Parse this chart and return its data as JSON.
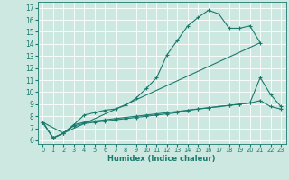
{
  "xlabel": "Humidex (Indice chaleur)",
  "bg_color": "#cce8e0",
  "grid_color": "#ffffff",
  "line_color": "#1a7a6e",
  "xlim": [
    -0.5,
    23.5
  ],
  "ylim": [
    5.7,
    17.5
  ],
  "xticks": [
    0,
    1,
    2,
    3,
    4,
    5,
    6,
    7,
    8,
    9,
    10,
    11,
    12,
    13,
    14,
    15,
    16,
    17,
    18,
    19,
    20,
    21,
    22,
    23
  ],
  "yticks": [
    6,
    7,
    8,
    9,
    10,
    11,
    12,
    13,
    14,
    15,
    16,
    17
  ],
  "line1_x": [
    0,
    1,
    2,
    3,
    4,
    5,
    6,
    7,
    8,
    9,
    10,
    11,
    12,
    13,
    14,
    15,
    16,
    17,
    18,
    19,
    20,
    21
  ],
  "line1_y": [
    7.5,
    6.2,
    6.6,
    7.3,
    8.1,
    8.3,
    8.5,
    8.6,
    8.9,
    9.5,
    10.3,
    11.2,
    13.1,
    14.3,
    15.5,
    16.2,
    16.8,
    16.5,
    15.3,
    15.3,
    15.5,
    14.1
  ],
  "line2_x": [
    0,
    1,
    2,
    3,
    4,
    5,
    6,
    7,
    8,
    9,
    10,
    11,
    12,
    13,
    14,
    15,
    16,
    17,
    18,
    19,
    20,
    21,
    22,
    23
  ],
  "line2_y": [
    7.5,
    6.2,
    6.6,
    7.3,
    7.5,
    7.6,
    7.7,
    7.8,
    7.9,
    8.0,
    8.1,
    8.2,
    8.3,
    8.4,
    8.5,
    8.6,
    8.7,
    8.8,
    8.9,
    9.0,
    9.1,
    11.2,
    9.8,
    8.8
  ],
  "line3_x": [
    0,
    1,
    2,
    3,
    4,
    5,
    6,
    7,
    8,
    9,
    10,
    11,
    12,
    13,
    14,
    15,
    16,
    17,
    18,
    19,
    20,
    21,
    22,
    23
  ],
  "line3_y": [
    7.5,
    6.2,
    6.6,
    7.2,
    7.4,
    7.5,
    7.6,
    7.7,
    7.8,
    7.9,
    8.0,
    8.1,
    8.2,
    8.3,
    8.5,
    8.6,
    8.7,
    8.8,
    8.9,
    9.0,
    9.1,
    9.3,
    8.8,
    8.6
  ],
  "line4_x": [
    0,
    2,
    21
  ],
  "line4_y": [
    7.5,
    6.6,
    14.1
  ]
}
